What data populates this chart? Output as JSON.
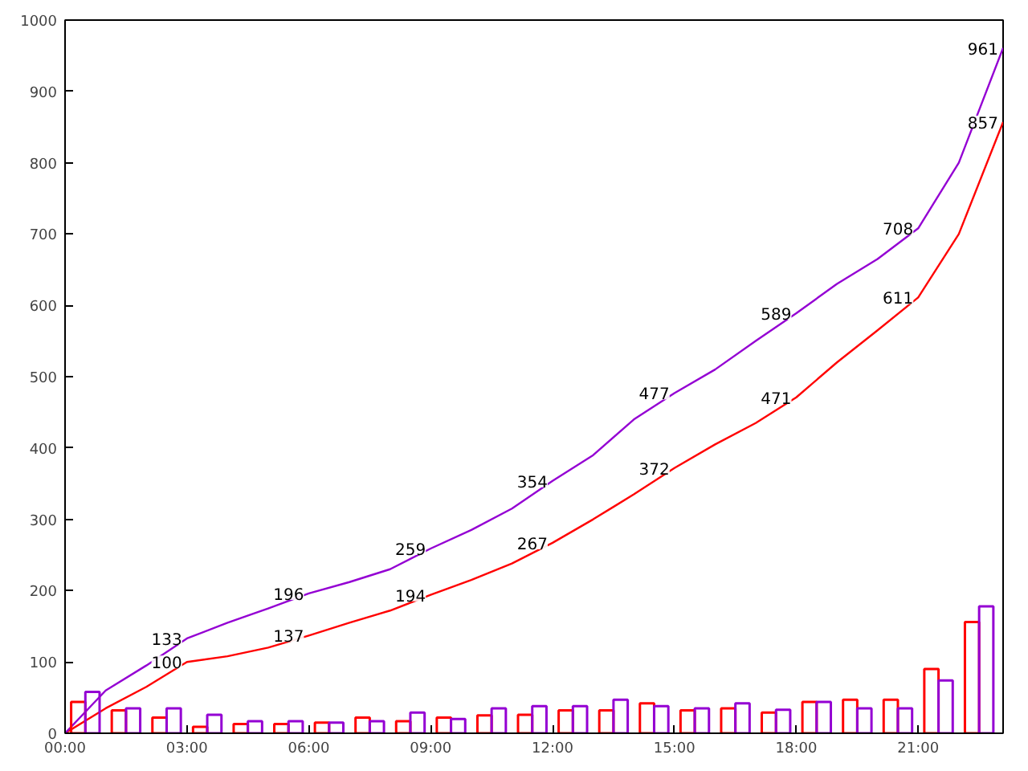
{
  "chart_data": {
    "type": "line",
    "xlim": [
      0,
      23.09
    ],
    "ylim": [
      0,
      1000
    ],
    "xticks": [
      {
        "value": 0,
        "label": "00:00"
      },
      {
        "value": 3,
        "label": "03:00"
      },
      {
        "value": 6,
        "label": "06:00"
      },
      {
        "value": 9,
        "label": "09:00"
      },
      {
        "value": 12,
        "label": "12:00"
      },
      {
        "value": 15,
        "label": "15:00"
      },
      {
        "value": 18,
        "label": "18:00"
      },
      {
        "value": 21,
        "label": "21:00"
      }
    ],
    "yticks": [
      0,
      100,
      200,
      300,
      400,
      500,
      600,
      700,
      800,
      900,
      1000
    ],
    "grid": false,
    "series": [
      {
        "color": "#ff0000",
        "x": [
          0,
          1,
          2,
          3,
          4,
          5,
          6,
          7,
          8,
          9,
          10,
          11,
          12,
          13,
          14,
          15,
          16,
          17,
          18,
          19,
          20,
          21,
          22,
          23.09
        ],
        "values": [
          0,
          35,
          65,
          100,
          108,
          120,
          137,
          155,
          172,
          194,
          215,
          238,
          267,
          300,
          335,
          372,
          405,
          435,
          471,
          520,
          565,
          611,
          700,
          857
        ],
        "value_labels": [
          null,
          null,
          null,
          "100",
          null,
          null,
          "137",
          null,
          null,
          "194",
          null,
          null,
          "267",
          null,
          null,
          "372",
          null,
          null,
          "471",
          null,
          null,
          "611",
          null,
          "857"
        ]
      },
      {
        "color": "#9400d3",
        "x": [
          0,
          1,
          2,
          3,
          4,
          5,
          6,
          7,
          8,
          9,
          10,
          11,
          12,
          13,
          14,
          15,
          16,
          17,
          18,
          19,
          20,
          21,
          22,
          23.09
        ],
        "values": [
          0,
          60,
          95,
          133,
          155,
          175,
          196,
          212,
          230,
          259,
          285,
          315,
          354,
          390,
          440,
          477,
          510,
          550,
          589,
          630,
          665,
          708,
          800,
          961
        ],
        "value_labels": [
          null,
          null,
          null,
          "133",
          null,
          null,
          "196",
          null,
          null,
          "259",
          null,
          null,
          "354",
          null,
          null,
          "477",
          null,
          null,
          "589",
          null,
          null,
          "708",
          null,
          "961"
        ]
      },
      {
        "type": "bar",
        "color": "#ff0000",
        "x": [
          0.5,
          1.5,
          2.5,
          3.5,
          4.5,
          5.5,
          6.5,
          7.5,
          8.5,
          9.5,
          10.5,
          11.5,
          12.5,
          13.5,
          14.5,
          15.5,
          16.5,
          17.5,
          18.5,
          19.5,
          20.5,
          21.5,
          22.5
        ],
        "values": [
          44,
          32,
          22,
          9,
          13,
          13,
          15,
          22,
          17,
          22,
          25,
          26,
          32,
          32,
          42,
          32,
          35,
          29,
          44,
          47,
          47,
          90,
          156
        ]
      },
      {
        "type": "bar",
        "color": "#9400d3",
        "x": [
          0.5,
          1.5,
          2.5,
          3.5,
          4.5,
          5.5,
          6.5,
          7.5,
          8.5,
          9.5,
          10.5,
          11.5,
          12.5,
          13.5,
          14.5,
          15.5,
          16.5,
          17.5,
          18.5,
          19.5,
          20.5,
          21.5,
          22.5
        ],
        "values": [
          58,
          35,
          35,
          26,
          17,
          17,
          15,
          17,
          29,
          20,
          35,
          38,
          38,
          47,
          38,
          35,
          42,
          33,
          44,
          35,
          35,
          74,
          178
        ]
      }
    ]
  }
}
